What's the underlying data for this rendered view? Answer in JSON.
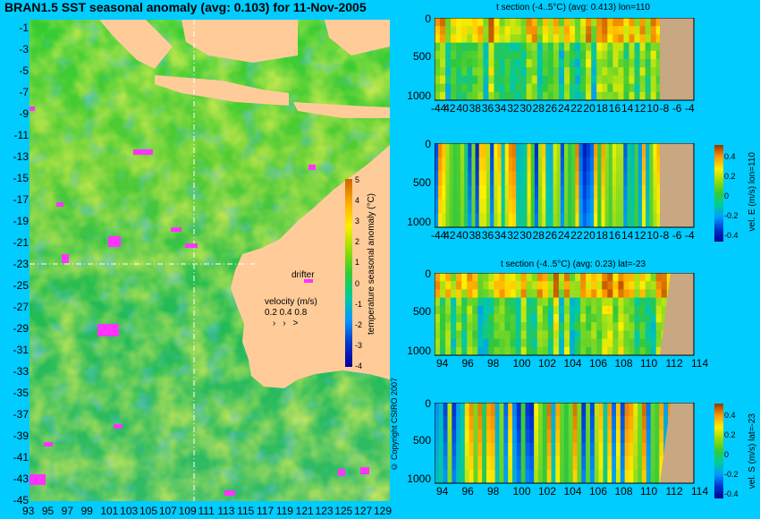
{
  "title": "BRAN1.5 SST seasonal anomaly (avg: 0.103) for 11-Nov-2005",
  "colors": {
    "background": "#00ccff",
    "land": "#ffcc99",
    "bathy_land": "#c8a882",
    "drifter": "#ff33ff"
  },
  "chart_data": [
    {
      "type": "heatmap",
      "name": "map",
      "xticks": [
        "93",
        "95",
        "97",
        "99",
        "101",
        "103",
        "105",
        "107",
        "109",
        "111",
        "113",
        "115",
        "117",
        "119",
        "121",
        "123",
        "125",
        "127",
        "129"
      ],
      "yticks": [
        "-1",
        "-3",
        "-5",
        "-7",
        "-9",
        "-11",
        "-13",
        "-15",
        "-17",
        "-19",
        "-21",
        "-23",
        "-25",
        "-27",
        "-29",
        "-31",
        "-33",
        "-35",
        "-37",
        "-39",
        "-41",
        "-43",
        "-45"
      ],
      "xlim": [
        93,
        130
      ],
      "ylim": [
        -45,
        0
      ],
      "section_lon": 110,
      "section_lat": -23,
      "colorbar": {
        "label": "temperature seasonal anomaly (°C)",
        "ticks": [
          "5",
          "4",
          "3",
          "2",
          "1",
          "0",
          "-1",
          "-2",
          "-3",
          "-4"
        ],
        "range": [
          -4,
          5
        ]
      },
      "legend": {
        "drifter_label": "drifter",
        "velocity_label": "velocity (m/s)",
        "velocity_values": "0.2 0.4 0.8"
      },
      "copyright": "© Copyright CSIRO 2007"
    },
    {
      "type": "heatmap",
      "name": "t-section-lon",
      "title": "t section (-4..5°C) (avg: 0.413) lon=110",
      "xticks": [
        "-44",
        "42",
        "40",
        "38",
        "36",
        "34",
        "32",
        "30",
        "28",
        "26",
        "24",
        "22",
        "20",
        "18",
        "16",
        "14",
        "12",
        "10",
        "-8",
        "-6",
        "-4"
      ],
      "yticks": [
        "0",
        "500",
        "1000"
      ],
      "ylim": [
        1050,
        0
      ]
    },
    {
      "type": "heatmap",
      "name": "vel-e-section",
      "xticks": [
        "-44",
        "42",
        "40",
        "38",
        "36",
        "34",
        "32",
        "30",
        "28",
        "26",
        "24",
        "22",
        "20",
        "18",
        "16",
        "14",
        "12",
        "10",
        "-8",
        "-6",
        "-4"
      ],
      "yticks": [
        "0",
        "500",
        "1000"
      ],
      "colorbar": {
        "label": "vel. E (m/s) lon=110",
        "ticks": [
          "0.4",
          "0.2",
          "0",
          "-0.2",
          "-0.4"
        ],
        "range": [
          -0.4,
          0.5
        ]
      }
    },
    {
      "type": "heatmap",
      "name": "t-section-lat",
      "title": "t section (-4..5°C) (avg: 0.23) lat=-23",
      "xticks": [
        "94",
        "96",
        "98",
        "100",
        "102",
        "104",
        "106",
        "108",
        "110",
        "112",
        "114"
      ],
      "yticks": [
        "0",
        "500",
        "1000"
      ]
    },
    {
      "type": "heatmap",
      "name": "vel-s-section",
      "xticks": [
        "94",
        "96",
        "98",
        "100",
        "102",
        "104",
        "106",
        "108",
        "110",
        "112",
        "114"
      ],
      "yticks": [
        "0",
        "500",
        "1000"
      ],
      "colorbar": {
        "label": "vel. S (m/s) lat=-23",
        "ticks": [
          "0.4",
          "0.2",
          "0",
          "-0.2",
          "-0.4"
        ],
        "range": [
          -0.4,
          0.5
        ]
      }
    }
  ]
}
